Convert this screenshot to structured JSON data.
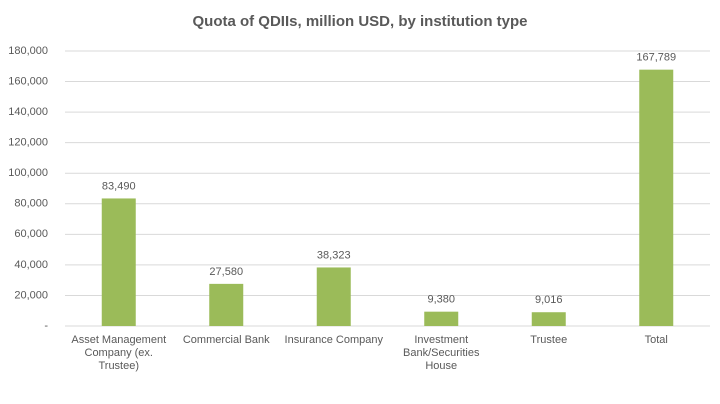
{
  "chart_data": {
    "type": "bar",
    "title": "Quota of QDIIs, million USD, by institution type",
    "categories": [
      "Asset Management Company (ex. Trustee)",
      "Commercial Bank",
      "Insurance Company",
      "Investment Bank/Securities House",
      "Trustee",
      "Total"
    ],
    "values": [
      83490,
      27580,
      38323,
      9380,
      9016,
      167789
    ],
    "value_labels": [
      "83,490",
      "27,580",
      "38,323",
      "9,380",
      "9,016",
      "167,789"
    ],
    "color": "#9bbb59",
    "ylim": [
      0,
      180000
    ],
    "yticks": [
      {
        "value": 0,
        "label": "-"
      },
      {
        "value": 20000,
        "label": "20,000"
      },
      {
        "value": 40000,
        "label": "40,000"
      },
      {
        "value": 60000,
        "label": "60,000"
      },
      {
        "value": 80000,
        "label": "80,000"
      },
      {
        "value": 100000,
        "label": "100,000"
      },
      {
        "value": 120000,
        "label": "120,000"
      },
      {
        "value": 140000,
        "label": "140,000"
      },
      {
        "value": 160000,
        "label": "160,000"
      },
      {
        "value": 180000,
        "label": "180,000"
      }
    ],
    "grid": true
  }
}
